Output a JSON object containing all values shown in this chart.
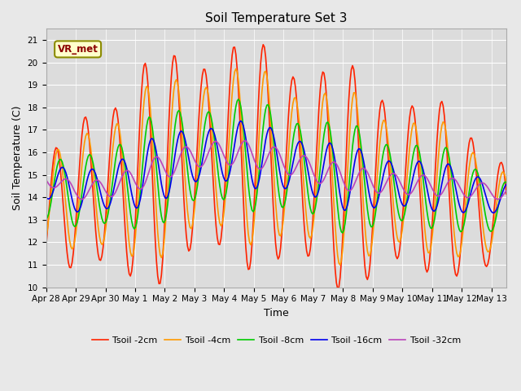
{
  "title": "Soil Temperature Set 3",
  "xlabel": "Time",
  "ylabel": "Soil Temperature (C)",
  "ylim": [
    10.0,
    21.5
  ],
  "yticks": [
    10.0,
    11.0,
    12.0,
    13.0,
    14.0,
    15.0,
    16.0,
    17.0,
    18.0,
    19.0,
    20.0,
    21.0
  ],
  "fig_bg_color": "#e8e8e8",
  "plot_bg_color": "#dcdcdc",
  "series_colors": [
    "#ff2200",
    "#ff9900",
    "#00cc00",
    "#0000ee",
    "#bb44bb"
  ],
  "series_labels": [
    "Tsoil -2cm",
    "Tsoil -4cm",
    "Tsoil -8cm",
    "Tsoil -16cm",
    "Tsoil -32cm"
  ],
  "line_width": 1.2,
  "annotation_text": "VR_met",
  "xtick_labels": [
    "Apr 28",
    "Apr 29",
    "Apr 30",
    "May 1",
    "May 2",
    "May 3",
    "May 4",
    "May 5",
    "May 6",
    "May 7",
    "May 8",
    "May 9",
    "May 10",
    "May 11",
    "May 12",
    "May 13"
  ],
  "n_days": 15.5,
  "grid_color": "#ffffff",
  "title_fontsize": 11,
  "axis_label_fontsize": 9,
  "tick_fontsize": 7.5,
  "legend_fontsize": 8
}
